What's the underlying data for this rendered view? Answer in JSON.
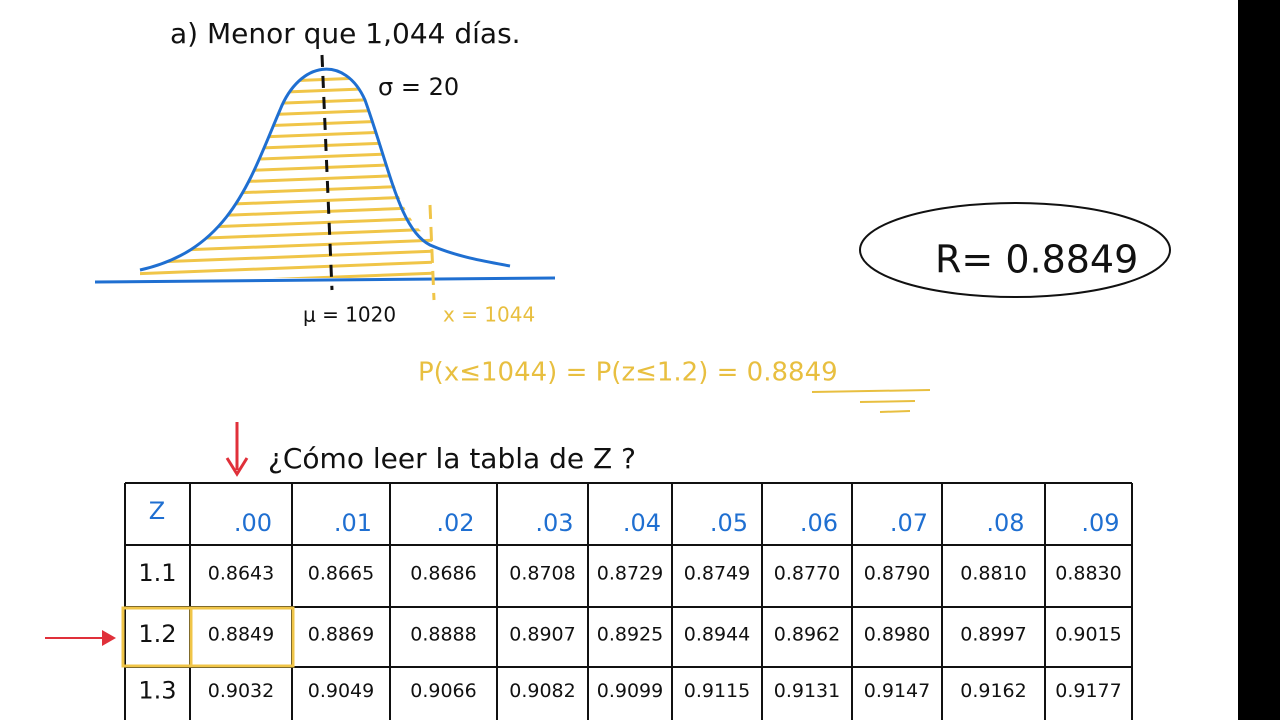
{
  "title": "a) Menor que 1,044 días.",
  "graph": {
    "sigma_label": "σ = 20",
    "mu_label": "μ = 1020",
    "x_label": "x = 1044"
  },
  "probability": "P(x≤1044) = P(z≤1.2) = 0.8849",
  "result": "R= 0.8849",
  "question": "¿Cómo leer la tabla de Z ?",
  "table": {
    "header": [
      "Z",
      ".00",
      ".01",
      ".02",
      ".03",
      ".04",
      ".05",
      ".06",
      ".07",
      ".08",
      ".09"
    ],
    "rows": [
      [
        "1.1",
        "0.8643",
        "0.8665",
        "0.8686",
        "0.8708",
        "0.8729",
        "0.8749",
        "0.8770",
        "0.8790",
        "0.8810",
        "0.8830"
      ],
      [
        "1.2",
        "0.8849",
        "0.8869",
        "0.8888",
        "0.8907",
        "0.8925",
        "0.8944",
        "0.8962",
        "0.8980",
        "0.8997",
        "0.9015"
      ],
      [
        "1.3",
        "0.9032",
        "0.9049",
        "0.9066",
        "0.9082",
        "0.9099",
        "0.9115",
        "0.9131",
        "0.9147",
        "0.9162",
        "0.9177"
      ]
    ]
  }
}
